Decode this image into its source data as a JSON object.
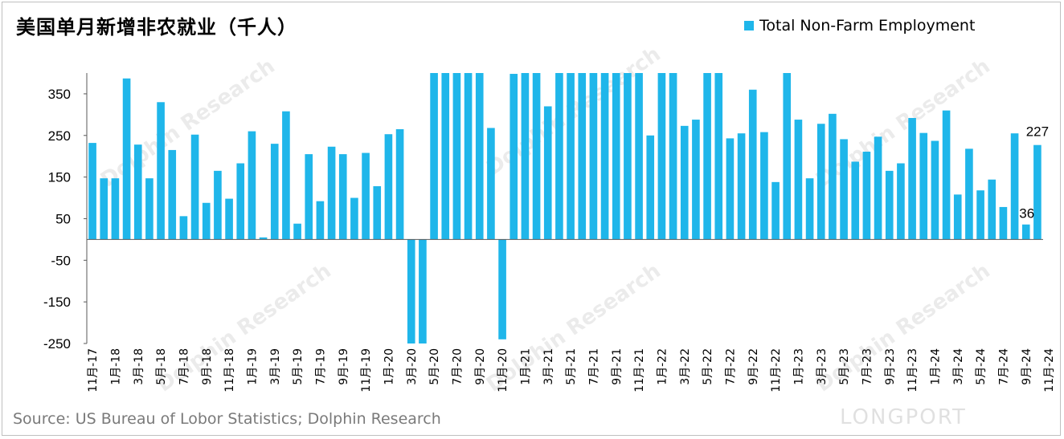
{
  "title": "美国单月新增非农就业（千人）",
  "source": "Source: US Bureau of Lobor Statistics; Dolphin Research",
  "watermark": "Dolphin Research",
  "logo_text": "LONGPORT",
  "colors": {
    "bar": "#1fb6ea",
    "axis": "#595959",
    "text": "#000000"
  },
  "chart_data": {
    "type": "bar",
    "title": "美国单月新增非农就业（千人）",
    "series": [
      {
        "name": "Total Non-Farm Employment",
        "values": [
          232,
          147,
          147,
          387,
          228,
          147,
          330,
          215,
          56,
          252,
          88,
          165,
          98,
          183,
          260,
          5,
          230,
          308,
          38,
          205,
          92,
          223,
          205,
          100,
          208,
          128,
          253,
          265,
          -250,
          -250,
          400,
          400,
          400,
          400,
          400,
          268,
          -240,
          398,
          400,
          400,
          320,
          400,
          400,
          400,
          400,
          400,
          400,
          400,
          400,
          250,
          400,
          400,
          273,
          288,
          400,
          400,
          243,
          255,
          360,
          258,
          138,
          400,
          288,
          147,
          278,
          302,
          241,
          187,
          211,
          247,
          165,
          183,
          292,
          256,
          237,
          310,
          108,
          218,
          118,
          144,
          78,
          255,
          36,
          227
        ]
      }
    ],
    "x_tick_labels": [
      "11月-17",
      "1月-18",
      "3月-18",
      "5月-18",
      "7月-18",
      "9月-18",
      "11月-18",
      "1月-19",
      "3月-19",
      "5月-19",
      "7月-19",
      "9月-19",
      "11月-19",
      "1月-20",
      "3月-20",
      "5月-20",
      "7月-20",
      "9月-20",
      "11月-20",
      "1月-21",
      "3月-21",
      "5月-21",
      "7月-21",
      "9月-21",
      "11月-21",
      "1月-22",
      "3月-22",
      "5月-22",
      "7月-22",
      "9月-22",
      "11月-22",
      "1月-23",
      "3月-23",
      "5月-23",
      "7月-23",
      "9月-23",
      "11月-23",
      "1月-24",
      "3月-24",
      "5月-24",
      "7月-24",
      "9月-24",
      "11月-24"
    ],
    "ylim": [
      -250,
      400
    ],
    "yticks": [
      350,
      250,
      150,
      50,
      -50,
      -150,
      -250
    ],
    "data_labels": [
      {
        "index": 82,
        "text": "36"
      },
      {
        "index": 83,
        "text": "227"
      }
    ],
    "legend_position": "top-right",
    "grid": false
  }
}
